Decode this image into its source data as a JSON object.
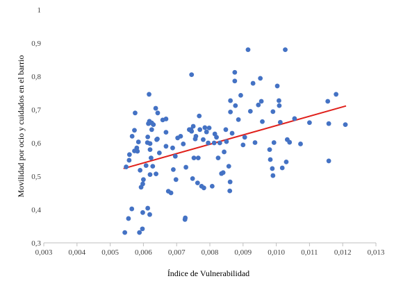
{
  "chart_data": {
    "type": "scatter",
    "xlabel": "Índice de Vulnerabilidad",
    "ylabel": "Movilidad por ocio y cuidados en el barrio",
    "xlim": [
      0.003,
      0.013
    ],
    "ylim": [
      0.3,
      1.0
    ],
    "x_ticks": [
      0.003,
      0.004,
      0.005,
      0.006,
      0.007,
      0.008,
      0.009,
      0.01,
      0.011,
      0.012,
      0.013
    ],
    "x_tick_labels": [
      "0,003",
      "0,004",
      "0,005",
      "0,006",
      "0,007",
      "0,008",
      "0,009",
      "0,010",
      "0,011",
      "0,012",
      "0,013"
    ],
    "y_ticks": [
      0.3,
      0.4,
      0.5,
      0.6,
      0.7,
      0.8,
      0.9,
      1.0
    ],
    "y_tick_labels": [
      "0,3",
      "0,4",
      "0,5",
      "0,6",
      "0,7",
      "0,8",
      "0,9",
      "1"
    ],
    "grid": false,
    "legend": "none",
    "colors": {
      "points": "#4472C4",
      "trendline": "#E0201B",
      "axis": "#BFBFBF"
    },
    "trendline": {
      "type": "linear",
      "x": [
        0.0054,
        0.0121
      ],
      "y": [
        0.523,
        0.711
      ]
    },
    "series": [
      {
        "points": [
          [
            0.00544,
            0.331
          ],
          [
            0.00555,
            0.373
          ],
          [
            0.00565,
            0.402
          ],
          [
            0.00588,
            0.331
          ],
          [
            0.00597,
            0.342
          ],
          [
            0.00598,
            0.391
          ],
          [
            0.00619,
            0.385
          ],
          [
            0.00613,
            0.404
          ],
          [
            0.00548,
            0.528
          ],
          [
            0.00557,
            0.548
          ],
          [
            0.00558,
            0.565
          ],
          [
            0.00566,
            0.62
          ],
          [
            0.00573,
            0.576
          ],
          [
            0.00573,
            0.638
          ],
          [
            0.00575,
            0.69
          ],
          [
            0.0058,
            0.585
          ],
          [
            0.00582,
            0.575
          ],
          [
            0.00585,
            0.603
          ],
          [
            0.0059,
            0.518
          ],
          [
            0.00593,
            0.467
          ],
          [
            0.00598,
            0.477
          ],
          [
            0.006,
            0.49
          ],
          [
            0.00608,
            0.532
          ],
          [
            0.00612,
            0.601
          ],
          [
            0.00613,
            0.618
          ],
          [
            0.00615,
            0.658
          ],
          [
            0.00617,
            0.746
          ],
          [
            0.00618,
            0.665
          ],
          [
            0.0062,
            0.505
          ],
          [
            0.0062,
            0.598
          ],
          [
            0.0062,
            0.58
          ],
          [
            0.00623,
            0.555
          ],
          [
            0.00625,
            0.64
          ],
          [
            0.00625,
            0.66
          ],
          [
            0.0063,
            0.655
          ],
          [
            0.00628,
            0.53
          ],
          [
            0.00637,
            0.704
          ],
          [
            0.00638,
            0.507
          ],
          [
            0.0064,
            0.61
          ],
          [
            0.00643,
            0.69
          ],
          [
            0.00642,
            0.612
          ],
          [
            0.00648,
            0.57
          ],
          [
            0.00658,
            0.669
          ],
          [
            0.00668,
            0.672
          ],
          [
            0.00668,
            0.59
          ],
          [
            0.00668,
            0.632
          ],
          [
            0.00675,
            0.455
          ],
          [
            0.00683,
            0.45
          ],
          [
            0.00688,
            0.585
          ],
          [
            0.0069,
            0.52
          ],
          [
            0.00696,
            0.56
          ],
          [
            0.00698,
            0.49
          ],
          [
            0.00703,
            0.615
          ],
          [
            0.00712,
            0.62
          ],
          [
            0.0072,
            0.597
          ],
          [
            0.00725,
            0.37
          ],
          [
            0.00726,
            0.375
          ],
          [
            0.00728,
            0.527
          ],
          [
            0.00738,
            0.64
          ],
          [
            0.00743,
            0.64
          ],
          [
            0.00745,
            0.635
          ],
          [
            0.00745,
            0.805
          ],
          [
            0.0075,
            0.65
          ],
          [
            0.00748,
            0.493
          ],
          [
            0.00752,
            0.555
          ],
          [
            0.00756,
            0.612
          ],
          [
            0.00758,
            0.62
          ],
          [
            0.00763,
            0.48
          ],
          [
            0.00765,
            0.555
          ],
          [
            0.00768,
            0.681
          ],
          [
            0.0077,
            0.64
          ],
          [
            0.00775,
            0.47
          ],
          [
            0.0078,
            0.61
          ],
          [
            0.00782,
            0.465
          ],
          [
            0.00785,
            0.646
          ],
          [
            0.0079,
            0.633
          ],
          [
            0.00795,
            0.6
          ],
          [
            0.00798,
            0.645
          ],
          [
            0.00807,
            0.47
          ],
          [
            0.00813,
            0.6
          ],
          [
            0.00815,
            0.627
          ],
          [
            0.0082,
            0.617
          ],
          [
            0.00825,
            0.555
          ],
          [
            0.0083,
            0.6
          ],
          [
            0.00835,
            0.508
          ],
          [
            0.0084,
            0.511
          ],
          [
            0.00843,
            0.573
          ],
          [
            0.00848,
            0.64
          ],
          [
            0.0085,
            0.604
          ],
          [
            0.00857,
            0.53
          ],
          [
            0.0086,
            0.456
          ],
          [
            0.00861,
            0.483
          ],
          [
            0.00862,
            0.693
          ],
          [
            0.00862,
            0.727
          ],
          [
            0.00867,
            0.629
          ],
          [
            0.00875,
            0.812
          ],
          [
            0.00875,
            0.786
          ],
          [
            0.00877,
            0.712
          ],
          [
            0.00886,
            0.67
          ],
          [
            0.00893,
            0.743
          ],
          [
            0.009,
            0.594
          ],
          [
            0.00905,
            0.617
          ],
          [
            0.00915,
            0.88
          ],
          [
            0.00922,
            0.695
          ],
          [
            0.0093,
            0.779
          ],
          [
            0.00936,
            0.601
          ],
          [
            0.00946,
            0.714
          ],
          [
            0.00952,
            0.794
          ],
          [
            0.00955,
            0.725
          ],
          [
            0.00958,
            0.664
          ],
          [
            0.0098,
            0.58
          ],
          [
            0.00982,
            0.55
          ],
          [
            0.00988,
            0.523
          ],
          [
            0.0099,
            0.502
          ],
          [
            0.0099,
            0.694
          ],
          [
            0.00993,
            0.601
          ],
          [
            0.01003,
            0.771
          ],
          [
            0.01008,
            0.727
          ],
          [
            0.01009,
            0.712
          ],
          [
            0.01012,
            0.662
          ],
          [
            0.01018,
            0.525
          ],
          [
            0.01027,
            0.88
          ],
          [
            0.0103,
            0.543
          ],
          [
            0.01033,
            0.61
          ],
          [
            0.0104,
            0.602
          ],
          [
            0.01055,
            0.673
          ],
          [
            0.01073,
            0.597
          ],
          [
            0.011,
            0.661
          ],
          [
            0.01155,
            0.725
          ],
          [
            0.01158,
            0.546
          ],
          [
            0.01158,
            0.658
          ],
          [
            0.0118,
            0.746
          ],
          [
            0.01208,
            0.655
          ]
        ]
      }
    ]
  }
}
